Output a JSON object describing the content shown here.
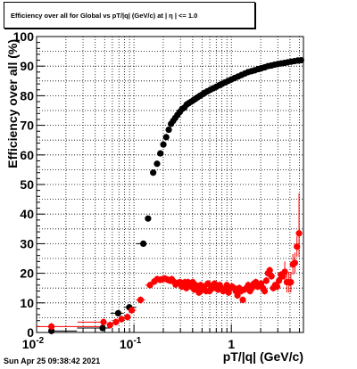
{
  "title": "Efficiency over all for Global vs pT/|q| (GeV/c) at | η | <= 1.0",
  "timestamp": "Sun Apr 25 09:38:42 2021",
  "colors": {
    "series_black": "#000000",
    "series_red": "#ff0000",
    "grid": "#000000"
  },
  "chart_data": {
    "type": "scatter",
    "xlabel": "pT/|q| (GeV/c)",
    "ylabel": "Efficiency over all (%)",
    "xscale": "log",
    "xlim": [
      0.01,
      5.5
    ],
    "ylim": [
      0,
      100
    ],
    "grid": true,
    "x_tick_labels": [
      "10^-2",
      "10^-1",
      "1"
    ],
    "y_tick_labels": [
      "0",
      "10",
      "20",
      "30",
      "40",
      "50",
      "60",
      "70",
      "80",
      "90",
      "100"
    ],
    "series": [
      {
        "color": "#000000",
        "x": [
          0.0142,
          0.0476,
          0.0688,
          0.0895,
          0.1248,
          0.1395,
          0.1575,
          0.1726,
          0.1867,
          0.2005,
          0.2142,
          0.2275,
          0.2404,
          0.2527,
          0.2657,
          0.2797,
          0.2952,
          0.3124,
          0.3298,
          0.3475,
          0.3658,
          0.3869,
          0.4084,
          0.4302,
          0.4525,
          0.4774,
          0.5071,
          0.5346,
          0.5674,
          0.608,
          0.6512,
          0.6987,
          0.7484,
          0.8023,
          0.8615,
          0.9287,
          1.002,
          1.0841,
          1.1748,
          1.2719,
          1.378,
          1.4921,
          1.6154,
          1.7453,
          1.8856,
          2.036,
          2.1997,
          2.3787,
          2.5693,
          2.7782,
          3.004,
          3.2483,
          3.5139,
          3.8003,
          4.107,
          4.4426,
          4.8059,
          5.2025
        ],
        "y": [
          0.5,
          1.5,
          6.5,
          8.5,
          30,
          38.5,
          54,
          57,
          60.5,
          63.5,
          66,
          68.5,
          70.5,
          71.5,
          72.5,
          73.5,
          74.5,
          75.5,
          76,
          77,
          77.5,
          78,
          78.5,
          79,
          79.5,
          80,
          80.5,
          81,
          81.5,
          82,
          82.5,
          83,
          83.5,
          84,
          84.5,
          85,
          85.5,
          86,
          86.5,
          87,
          87.5,
          88,
          88.3,
          88.6,
          89,
          89.3,
          89.6,
          90,
          90.2,
          90.5,
          90.7,
          90.9,
          91.1,
          91.3,
          91.5,
          91.7,
          91.9,
          92
        ]
      },
      {
        "color": "#ff0000",
        "x": [
          0.0142,
          0.0487,
          0.0568,
          0.0652,
          0.0744,
          0.0857,
          0.0947,
          0.1168,
          0.1461,
          0.1614,
          0.1728,
          0.1851,
          0.1968,
          0.2083,
          0.2223,
          0.2349,
          0.2442,
          0.256,
          0.2677,
          0.2858,
          0.2977,
          0.3101,
          0.3223,
          0.333,
          0.3452,
          0.3587,
          0.3716,
          0.386,
          0.4013,
          0.416,
          0.4304,
          0.4465,
          0.4643,
          0.4839,
          0.504,
          0.5274,
          0.5511,
          0.5743,
          0.5965,
          0.6218,
          0.6471,
          0.6726,
          0.6994,
          0.7287,
          0.7605,
          0.791,
          0.826,
          0.8603,
          0.8995,
          0.9374,
          0.9776,
          1.0185,
          1.0618,
          1.1088,
          1.1558,
          1.2061,
          1.2584,
          1.3114,
          1.3652,
          1.4272,
          1.4907,
          1.5567,
          1.6271,
          1.7066,
          1.7839,
          1.8624,
          1.9424,
          2.0242,
          2.1094,
          2.1974,
          2.2848,
          2.377,
          2.4776,
          2.5847,
          2.6962,
          2.8153,
          2.9485,
          3.0865,
          3.2277,
          3.3779,
          3.5406,
          3.7158,
          3.8949,
          4.0852,
          4.2827,
          4.4926,
          4.7143,
          4.9552
        ],
        "y": [
          2,
          3.5,
          2.5,
          3.5,
          4.5,
          5.2,
          7.5,
          11,
          16,
          17.2,
          18,
          17.8,
          18,
          18.2,
          17.8,
          17.5,
          18,
          17.2,
          16.2,
          16.8,
          17,
          15.5,
          16.5,
          17,
          15,
          17,
          16,
          15.5,
          17,
          14.5,
          16,
          15,
          13.5,
          16,
          14.5,
          15.5,
          14,
          16.5,
          14,
          15.5,
          15,
          16.5,
          15,
          14.5,
          16,
          15,
          14,
          14.5,
          16,
          13.5,
          15,
          15.5,
          15,
          14,
          12.5,
          15,
          14,
          11,
          14.5,
          15,
          16,
          14,
          15,
          16.5,
          17,
          15.5,
          16,
          16.5,
          15,
          14,
          17.5,
          20,
          21,
          19,
          15,
          16,
          15.5,
          17.5,
          19.5,
          19,
          20.5,
          17,
          17,
          17,
          23,
          23.5,
          29,
          33.5
        ]
      }
    ]
  }
}
